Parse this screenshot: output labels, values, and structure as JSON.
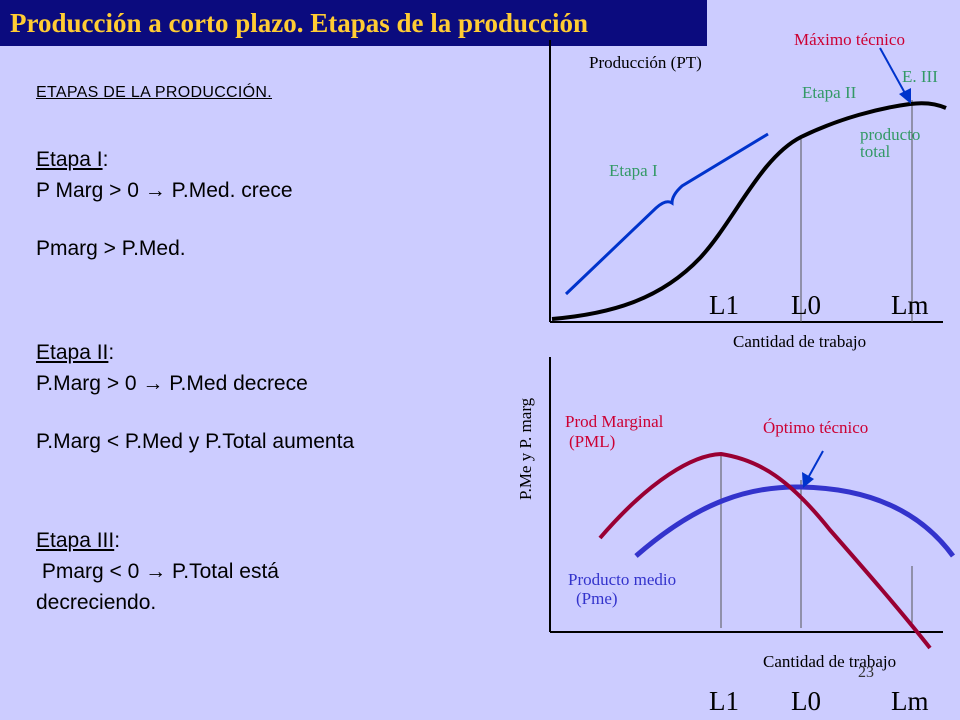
{
  "title": "Producción a corto plazo. Etapas de la producción",
  "left_panel": {
    "heading": "ETAPAS DE LA PRODUCCIÓN.",
    "stage1": {
      "name": "Etapa I",
      "line1": "P Marg > 0 → P.Med. crece",
      "line2": "Pmarg > P.Med."
    },
    "stage2": {
      "name": "Etapa II",
      "line1": "P.Marg > 0 → P.Med decrece",
      "line2": "P.Marg < P.Med y P.Total aumenta"
    },
    "stage3": {
      "name": "Etapa III",
      "line1": " Pmarg < 0 → P.Total está",
      "line2": "decreciendo."
    }
  },
  "top_chart": {
    "ylabel": "Producción (PT)",
    "xlabel": "Cantidad de trabajo",
    "ticks": [
      "L1",
      "L0",
      "Lm"
    ],
    "max_label": "Máximo técnico",
    "e3_label": "E. III",
    "etapa2_label": "Etapa II",
    "etapa1_label": "Etapa I",
    "curve_label_1": "producto",
    "curve_label_2": "total"
  },
  "bottom_chart": {
    "ylabel": "P.Me y P. marg",
    "xlabel": "Cantidad de trabajo",
    "ticks": [
      "L1",
      "L0",
      "Lm"
    ],
    "pml_label_1": "Prod Marginal",
    "pml_label_2": "(PML)",
    "optimo_label": "Óptimo técnico",
    "pme_label_1": "Producto medio",
    "pme_label_2": "(Pme)"
  },
  "slide_number": "23",
  "colors": {
    "background": "#ccccff",
    "title_bg": "#0b0b7e",
    "title_text": "#ffcc33",
    "red": "#cc0033",
    "green": "#339966",
    "blue": "#0033cc",
    "maroon": "#990033",
    "avg_blue": "#3333cc"
  }
}
